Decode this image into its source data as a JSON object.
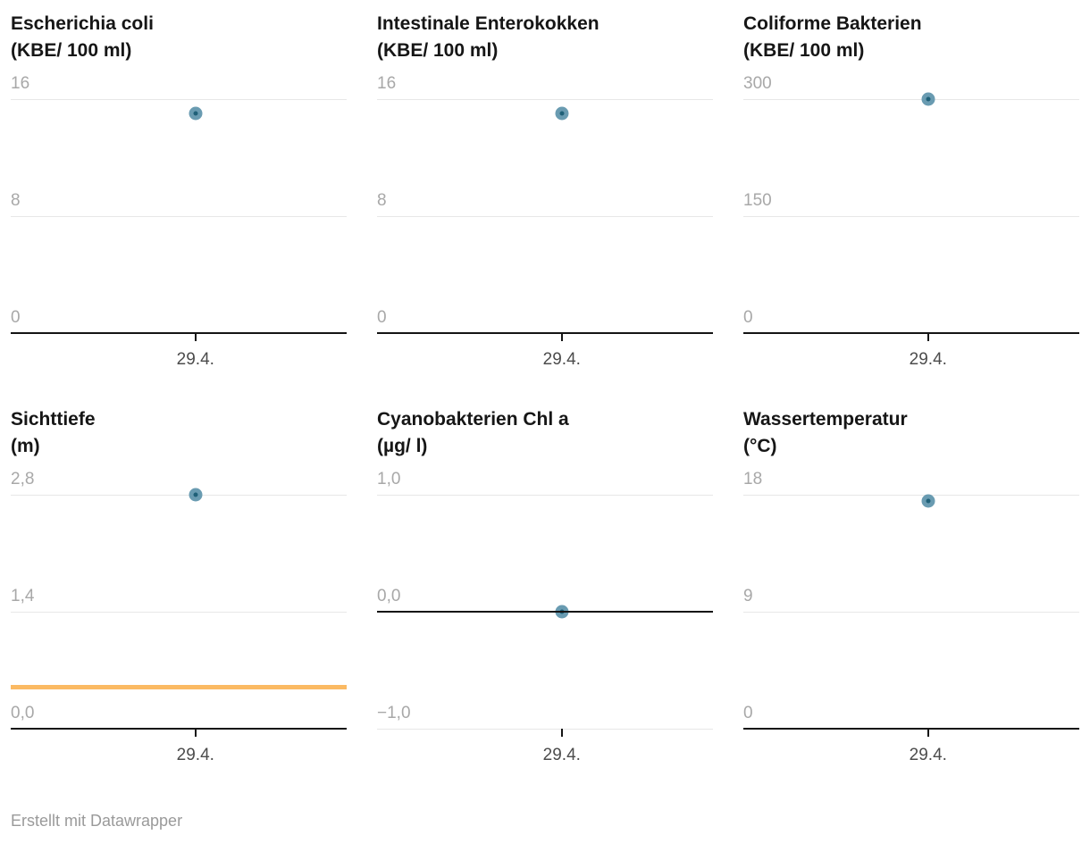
{
  "page": {
    "footer": "Erstellt mit Datawrapper"
  },
  "colors": {
    "background": "#ffffff",
    "title": "#161616",
    "gridline": "#e7e7e7",
    "axis_line": "#141414",
    "ytick_label": "#a8a8a8",
    "xtick_label": "#4c4c4c",
    "dot_fill": "#699bb1",
    "dot_core": "#1f6078",
    "threshold_line": "#fbba63",
    "footer": "#9a9a9a"
  },
  "chart_data": [
    {
      "type": "scatter",
      "title": "Escherichia coli",
      "subtitle": "(KBE/ 100 ml)",
      "ylim": [
        0,
        16
      ],
      "yticks": [
        {
          "value": 16,
          "label": "16"
        },
        {
          "value": 8,
          "label": "8"
        },
        {
          "value": 0,
          "label": "0"
        }
      ],
      "x_categories": [
        "29.4."
      ],
      "points": [
        {
          "x": "29.4.",
          "y": 15
        }
      ],
      "threshold": null,
      "grid": true,
      "legend": "none"
    },
    {
      "type": "scatter",
      "title": "Intestinale Enterokokken",
      "subtitle": "(KBE/ 100 ml)",
      "ylim": [
        0,
        16
      ],
      "yticks": [
        {
          "value": 16,
          "label": "16"
        },
        {
          "value": 8,
          "label": "8"
        },
        {
          "value": 0,
          "label": "0"
        }
      ],
      "x_categories": [
        "29.4."
      ],
      "points": [
        {
          "x": "29.4.",
          "y": 15
        }
      ],
      "threshold": null,
      "grid": true,
      "legend": "none"
    },
    {
      "type": "scatter",
      "title": "Coliforme Bakterien",
      "subtitle": "(KBE/ 100 ml)",
      "ylim": [
        0,
        300
      ],
      "yticks": [
        {
          "value": 300,
          "label": "300"
        },
        {
          "value": 150,
          "label": "150"
        },
        {
          "value": 0,
          "label": "0"
        }
      ],
      "x_categories": [
        "29.4."
      ],
      "points": [
        {
          "x": "29.4.",
          "y": 300
        }
      ],
      "threshold": null,
      "grid": true,
      "legend": "none"
    },
    {
      "type": "scatter",
      "title": "Sichttiefe",
      "subtitle": "(m)",
      "ylim": [
        0,
        2.8
      ],
      "yticks": [
        {
          "value": 2.8,
          "label": "2,8"
        },
        {
          "value": 1.4,
          "label": "1,4"
        },
        {
          "value": 0,
          "label": "0,0"
        }
      ],
      "x_categories": [
        "29.4."
      ],
      "points": [
        {
          "x": "29.4.",
          "y": 2.8
        }
      ],
      "threshold": {
        "value": 0.5
      },
      "grid": true,
      "legend": "none"
    },
    {
      "type": "scatter",
      "title": "Cyanobakterien Chl a",
      "subtitle": "(µg/ l)",
      "ylim": [
        -1.0,
        1.0
      ],
      "yticks": [
        {
          "value": 1.0,
          "label": "1,0"
        },
        {
          "value": 0,
          "label": "0,0"
        },
        {
          "value": -1.0,
          "label": "−1,0"
        }
      ],
      "x_categories": [
        "29.4."
      ],
      "points": [
        {
          "x": "29.4.",
          "y": 0
        }
      ],
      "threshold": null,
      "grid": true,
      "legend": "none"
    },
    {
      "type": "scatter",
      "title": "Wassertemperatur",
      "subtitle": "(°C)",
      "ylim": [
        0,
        18
      ],
      "yticks": [
        {
          "value": 18,
          "label": "18"
        },
        {
          "value": 9,
          "label": "9"
        },
        {
          "value": 0,
          "label": "0"
        }
      ],
      "x_categories": [
        "29.4."
      ],
      "points": [
        {
          "x": "29.4.",
          "y": 17.5
        }
      ],
      "threshold": null,
      "grid": true,
      "legend": "none"
    }
  ]
}
